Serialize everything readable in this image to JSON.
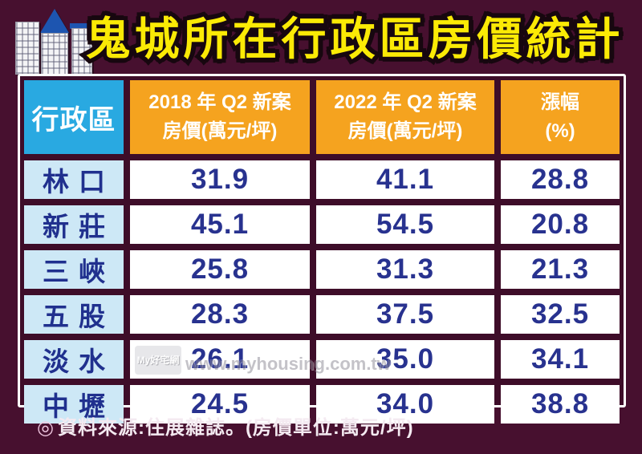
{
  "title": "鬼城所在行政區房價統計",
  "table": {
    "headers": {
      "district": "行政區",
      "col2018_line1": "2018 年 Q2 新案",
      "col2018_line2": "房價(萬元/坪)",
      "col2022_line1": "2022 年 Q2 新案",
      "col2022_line2": "房價(萬元/坪)",
      "change_line1": "漲幅",
      "change_line2": "(%)"
    },
    "rows": [
      {
        "district": "林口",
        "p2018": "31.9",
        "p2022": "41.1",
        "change": "28.8"
      },
      {
        "district": "新莊",
        "p2018": "45.1",
        "p2022": "54.5",
        "change": "20.8"
      },
      {
        "district": "三峽",
        "p2018": "25.8",
        "p2022": "31.3",
        "change": "21.3"
      },
      {
        "district": "五股",
        "p2018": "28.3",
        "p2022": "37.5",
        "change": "32.5"
      },
      {
        "district": "淡水",
        "p2018": "26.1",
        "p2022": "35.0",
        "change": "34.1"
      },
      {
        "district": "中壢",
        "p2018": "24.5",
        "p2022": "34.0",
        "change": "38.8"
      }
    ]
  },
  "source_note": {
    "bullet": "◎",
    "text": "資料來源:住展雜誌。(房價單位:萬元/坪)"
  },
  "watermark": {
    "logo_text": "My好宅網",
    "url": "www.myhousing.com.tw"
  },
  "colors": {
    "background": "#47102f",
    "title_yellow": "#fbea05",
    "title_outline": "#17070f",
    "header_cyan": "#29a9e1",
    "header_orange": "#f5a31f",
    "district_light_blue": "#cde8f6",
    "value_navy_text": "#28328f",
    "table_frame_white": "#ffffff",
    "grid_maroon": "#3e0d29",
    "roof_blue": "#1d55b0"
  },
  "chart_data": {
    "type": "table",
    "title": "鬼城所在行政區房價統計",
    "categories": [
      "林口",
      "新莊",
      "三峽",
      "五股",
      "淡水",
      "中壢"
    ],
    "series": [
      {
        "name": "2018 年 Q2 新案房價(萬元/坪)",
        "values": [
          31.9,
          45.1,
          25.8,
          28.3,
          26.1,
          24.5
        ]
      },
      {
        "name": "2022 年 Q2 新案房價(萬元/坪)",
        "values": [
          41.1,
          54.5,
          31.3,
          37.5,
          35.0,
          34.0
        ]
      },
      {
        "name": "漲幅(%)",
        "values": [
          28.8,
          20.8,
          21.3,
          32.5,
          34.1,
          38.8
        ]
      }
    ],
    "source": "住展雜誌",
    "unit": "萬元/坪"
  }
}
